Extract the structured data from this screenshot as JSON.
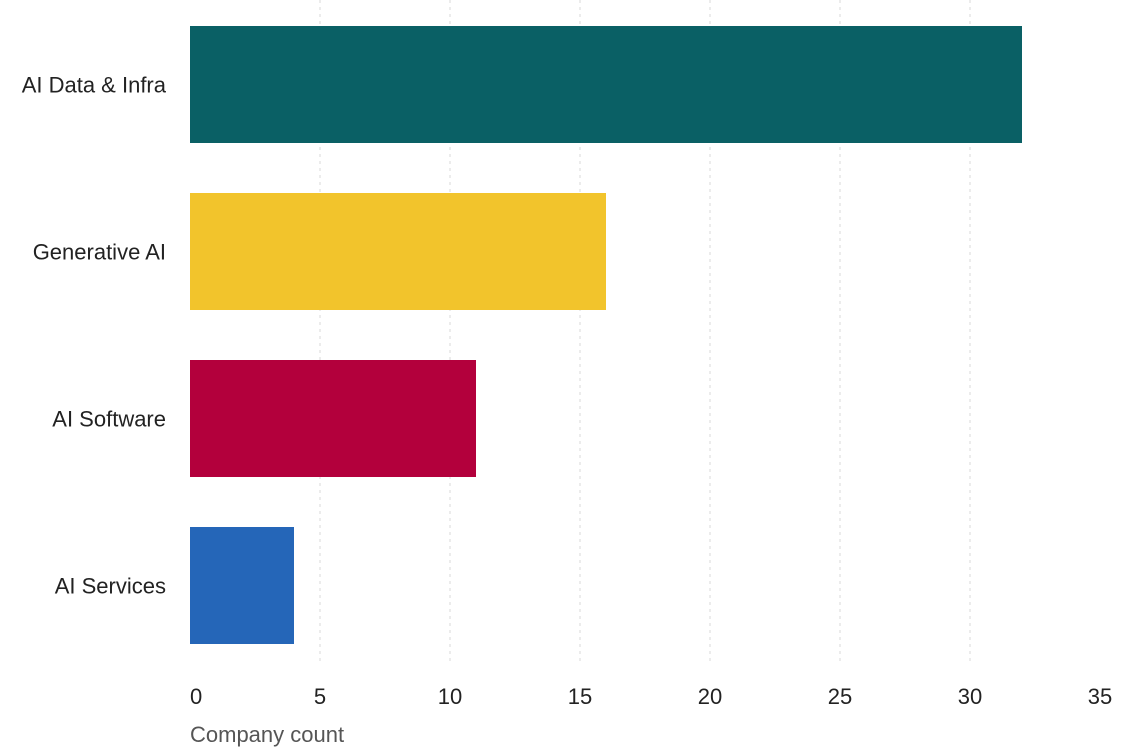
{
  "chart_data": {
    "type": "bar",
    "orientation": "horizontal",
    "categories": [
      "AI Data & Infra",
      "Generative AI",
      "AI Software",
      "AI Services"
    ],
    "values": [
      32,
      16,
      11,
      4
    ],
    "colors": [
      "#0a6065",
      "#f2c42c",
      "#b3003c",
      "#2566b8"
    ],
    "xlabel": "Company count",
    "ylabel": "",
    "xlim": [
      0,
      35
    ],
    "xticks": [
      0,
      5,
      10,
      15,
      20,
      25,
      30,
      35
    ],
    "xtick_labels": [
      "0",
      "5",
      "10",
      "15",
      "20",
      "25",
      "30",
      "35"
    ],
    "grid": "vertical-dashed",
    "legend": "none"
  }
}
